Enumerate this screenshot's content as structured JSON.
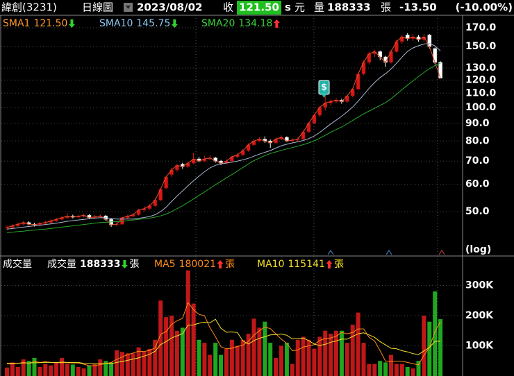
{
  "header": {
    "name": "緯創(3231)",
    "period": "日線圖",
    "date": "2023/08/02",
    "close_label": "收",
    "close": "121.50",
    "mark": "s",
    "currency": "元",
    "volume_label": "量",
    "volume": "188333",
    "volume_unit": "張",
    "change": "-13.50",
    "change_pct": "(-10.00%)"
  },
  "chart_data": [
    {
      "type": "candlestick",
      "scale": "log",
      "axis_label": "(log)",
      "grid": true,
      "annotation": "$",
      "ylim": [
        37.4,
        184.7
      ],
      "yticks": [
        {
          "value": 50,
          "label": "50.0"
        },
        {
          "value": 60,
          "label": "60.0"
        },
        {
          "value": 70,
          "label": "70.0"
        },
        {
          "value": 80,
          "label": "80.0"
        },
        {
          "value": 90,
          "label": "90.0"
        },
        {
          "value": 100,
          "label": "100.0"
        },
        {
          "value": 110,
          "label": "110.0"
        },
        {
          "value": 120,
          "label": "120.0"
        },
        {
          "value": 130,
          "label": "130.0"
        },
        {
          "value": 150,
          "label": "150.0"
        },
        {
          "value": 170,
          "label": "170.0"
        }
      ],
      "up_color": "#d81818",
      "down_color": "#ffffff",
      "open": [
        44.8,
        45,
        45.5,
        46,
        46.5,
        46,
        45.8,
        46.2,
        46.5,
        47,
        47.5,
        48,
        48.5,
        48.2,
        48.5,
        48.8,
        48,
        48.3,
        48.6,
        47.5,
        45.8,
        46,
        48,
        48.5,
        49,
        50.5,
        51,
        52,
        54,
        58.5,
        64,
        66,
        68.5,
        67.5,
        69,
        71,
        70,
        71,
        71.5,
        70,
        69,
        70,
        72,
        73,
        75,
        78,
        80,
        81,
        80,
        79,
        81,
        82,
        80,
        80.5,
        81,
        85,
        90,
        95,
        100,
        103,
        104,
        105,
        104,
        108,
        113,
        125,
        135,
        143,
        145,
        140,
        135,
        145,
        155,
        162,
        158,
        160,
        157,
        162,
        148,
        135
      ],
      "high": [
        45.6,
        46,
        46.5,
        47,
        46.9,
        46.4,
        46.8,
        47.1,
        47.6,
        48,
        48.6,
        49.6,
        49,
        49,
        49.3,
        49.2,
        48.9,
        49.1,
        48.9,
        47.8,
        46.7,
        48.4,
        49,
        49.6,
        51,
        51.8,
        52.6,
        54.6,
        58.5,
        63.5,
        67,
        68.8,
        69.2,
        69.8,
        74,
        72,
        72.5,
        72.8,
        72,
        70.5,
        70.8,
        72.6,
        73.8,
        75.8,
        78.8,
        81,
        82,
        82.5,
        80.8,
        81.8,
        83,
        82.5,
        81.5,
        82,
        85.8,
        90.8,
        96,
        101,
        108,
        105.5,
        106.5,
        106,
        109,
        114,
        126,
        137,
        145,
        147,
        146,
        141,
        147,
        157,
        162,
        164,
        163,
        162,
        163,
        163,
        149,
        136
      ],
      "low": [
        44.3,
        44.7,
        45.2,
        45.6,
        45.6,
        45.3,
        45.4,
        45.8,
        46.2,
        46.7,
        47.2,
        47.7,
        47.8,
        47.9,
        48.1,
        47.6,
        47.7,
        47.9,
        47.1,
        45.2,
        45.3,
        45.8,
        47.6,
        48.2,
        48.7,
        50,
        50.6,
        51.6,
        53.6,
        58,
        63,
        65.2,
        66.5,
        66.8,
        68.5,
        69.4,
        69.5,
        70.5,
        69.3,
        68.2,
        68.5,
        69.5,
        71.5,
        72.5,
        74.5,
        77.5,
        79.5,
        79,
        76.5,
        78.5,
        80.5,
        79.5,
        79,
        79.8,
        80.5,
        84.5,
        89.5,
        94,
        98,
        101,
        103,
        102.5,
        103,
        107,
        112,
        124,
        133,
        140,
        137,
        131,
        134,
        144,
        153,
        156,
        156,
        155,
        155,
        148,
        133.5,
        121.5
      ],
      "close": [
        45,
        45.5,
        46,
        46.5,
        46,
        45.8,
        46.2,
        46.5,
        47,
        47.5,
        48,
        48.5,
        48.2,
        48.5,
        48.8,
        48,
        48.3,
        48.6,
        47.5,
        45.8,
        46,
        48,
        48.5,
        49,
        50.5,
        51,
        52,
        54,
        58,
        63,
        66,
        68,
        67.5,
        69,
        71,
        70,
        71,
        71.5,
        70,
        69,
        70,
        72,
        73,
        75,
        78,
        80,
        81,
        80,
        79,
        81,
        82,
        80,
        80.5,
        81,
        85,
        90,
        95,
        100,
        103,
        104,
        105,
        104,
        108,
        113,
        125,
        135,
        143,
        145,
        140,
        135,
        145,
        155,
        160,
        158,
        160,
        157,
        160,
        150,
        135,
        121.5
      ],
      "series": [
        {
          "name": "SMA1",
          "value": 121.5,
          "value_label": "121.50",
          "trend": "down",
          "color": "#ff9a2e",
          "line_color": "#e8502a",
          "values": [
            45,
            45.5,
            46,
            46.5,
            46,
            45.8,
            46.2,
            46.5,
            47,
            47.5,
            48,
            48.5,
            48.2,
            48.5,
            48.8,
            48,
            48.3,
            48.6,
            47.5,
            45.8,
            46,
            48,
            48.5,
            49,
            50.5,
            51,
            52,
            54,
            58,
            63,
            66,
            68,
            67.5,
            69,
            71,
            70,
            71,
            71.5,
            70,
            69,
            70,
            72,
            73,
            75,
            78,
            80,
            81,
            80,
            79,
            81,
            82,
            80,
            80.5,
            81,
            85,
            90,
            95,
            100,
            103,
            104,
            105,
            104,
            108,
            113,
            125,
            135,
            143,
            145,
            140,
            135,
            145,
            155,
            160,
            158,
            160,
            157,
            160,
            150,
            135,
            121.5
          ]
        },
        {
          "name": "SMA10",
          "value": 145.75,
          "value_label": "145.75",
          "trend": "down",
          "color": "#8cc8f0",
          "line_color": "#a8b8d0",
          "values": [
            44.5,
            44.7,
            44.9,
            45.1,
            45.3,
            45.5,
            45.7,
            45.9,
            46.1,
            46.3,
            46.6,
            46.9,
            47.1,
            47.3,
            47.5,
            47.7,
            47.9,
            48.0,
            48.0,
            47.8,
            47.6,
            47.6,
            47.6,
            47.6,
            47.8,
            48.1,
            48.4,
            49.0,
            50.0,
            51.5,
            53.5,
            55.5,
            57.4,
            59.4,
            61.4,
            63.3,
            65.2,
            66.9,
            68.1,
            68.7,
            69.1,
            69.5,
            70.0,
            70.6,
            71.3,
            72.3,
            73.3,
            74.2,
            75.1,
            76.3,
            77.5,
            78.3,
            79.0,
            79.6,
            80.3,
            81.3,
            82.7,
            84.7,
            87.1,
            89.6,
            91.9,
            94.3,
            97.1,
            100.3,
            104.3,
            108.8,
            113.6,
            118.1,
            122.0,
            125.2,
            129.2,
            134.2,
            139.9,
            145.2,
            148.6,
            150.8,
            152.5,
            153.2,
            150.6,
            145.75
          ]
        },
        {
          "name": "SMA20",
          "value": 134.18,
          "value_label": "134.18",
          "trend": "up",
          "color": "#3ad43a",
          "line_color": "#2aa82a",
          "values": [
            43.5,
            43.6,
            43.8,
            43.9,
            44.1,
            44.2,
            44.4,
            44.5,
            44.7,
            44.9,
            45.1,
            45.3,
            45.5,
            45.7,
            45.9,
            46.1,
            46.3,
            46.5,
            46.6,
            46.7,
            46.8,
            46.9,
            47.1,
            47.3,
            47.5,
            47.7,
            47.9,
            48.2,
            48.6,
            49.2,
            50.0,
            51.0,
            52.0,
            53.2,
            54.4,
            55.7,
            57.0,
            58.4,
            59.8,
            61.2,
            62.6,
            64.0,
            65.5,
            67.1,
            68.7,
            70.2,
            71.4,
            72.6,
            73.6,
            74.4,
            75.2,
            75.9,
            76.6,
            77.3,
            78.1,
            79.0,
            80.1,
            81.5,
            83.1,
            84.8,
            86.3,
            87.9,
            89.7,
            91.7,
            93.8,
            95.8,
            97.7,
            99.5,
            101.4,
            103.3,
            106.0,
            109.2,
            112.6,
            116.0,
            119.4,
            122.8,
            126.2,
            129.5,
            132.2,
            134.18
          ]
        }
      ]
    },
    {
      "type": "bar",
      "title": "成交量",
      "unit": "張",
      "grid": true,
      "ylim": [
        0,
        393000
      ],
      "yticks": [
        {
          "value": 100000,
          "label": "100K"
        },
        {
          "value": 200000,
          "label": "200K"
        },
        {
          "value": 300000,
          "label": "300K"
        }
      ],
      "up_color": "#c01818",
      "down_color": "#1fa81f",
      "name": "成交量",
      "value": 188333,
      "value_label": "188333",
      "trend": "down",
      "color": "#ffffff",
      "values": [
        28000,
        45000,
        30000,
        55000,
        50000,
        60000,
        30000,
        40000,
        35000,
        45000,
        60000,
        40000,
        38000,
        30000,
        25000,
        35000,
        40000,
        55000,
        50000,
        45000,
        85000,
        80000,
        75000,
        75000,
        95000,
        80000,
        90000,
        120000,
        250000,
        195000,
        200000,
        150000,
        160000,
        350000,
        240000,
        120000,
        110000,
        70000,
        110000,
        70000,
        90000,
        120000,
        100000,
        120000,
        140000,
        190000,
        160000,
        180000,
        110000,
        60000,
        100000,
        110000,
        40000,
        120000,
        130000,
        120000,
        90000,
        130000,
        150000,
        140000,
        150000,
        150000,
        110000,
        170000,
        210000,
        110000,
        40000,
        40000,
        50000,
        45000,
        70000,
        40000,
        40000,
        30000,
        25000,
        50000,
        200000,
        180000,
        280000,
        188333
      ],
      "series": [
        {
          "name": "MA5",
          "value": 180021,
          "value_label": "180021",
          "trend": "up",
          "color": "#ff8c1a",
          "values": [
            40000,
            40000,
            42000,
            45000,
            42000,
            48000,
            45000,
            47000,
            45000,
            44000,
            44000,
            44000,
            43000,
            43000,
            39000,
            34000,
            34000,
            38000,
            41000,
            45000,
            55000,
            63000,
            71000,
            76000,
            82000,
            81000,
            85000,
            93000,
            138000,
            147000,
            171000,
            183000,
            191000,
            243000,
            220000,
            204000,
            200000,
            160000,
            130000,
            97000,
            90000,
            92000,
            98000,
            102000,
            115000,
            135000,
            150000,
            162000,
            157000,
            140000,
            122000,
            108000,
            84000,
            86000,
            96000,
            100000,
            104000,
            118000,
            124000,
            126000,
            132000,
            144000,
            140000,
            144000,
            156000,
            156000,
            128000,
            116000,
            84000,
            49000,
            49000,
            49000,
            49000,
            45000,
            41000,
            37000,
            69000,
            95000,
            147000,
            180021
          ]
        },
        {
          "name": "MA10",
          "value": 115141,
          "value_label": "115141",
          "trend": "up",
          "color": "#f5e12a",
          "values": [
            42000,
            42000,
            42000,
            43000,
            43000,
            44000,
            44000,
            45000,
            45000,
            45000,
            46000,
            45000,
            45000,
            45000,
            42000,
            41000,
            40000,
            41000,
            41000,
            41000,
            45000,
            48000,
            52000,
            56000,
            60000,
            66000,
            72000,
            82000,
            104000,
            114000,
            126000,
            133000,
            140000,
            168000,
            169000,
            175000,
            178000,
            176000,
            188000,
            158000,
            145000,
            146000,
            144000,
            116000,
            106000,
            117000,
            125000,
            130000,
            136000,
            137000,
            139000,
            135000,
            123000,
            124000,
            126000,
            117000,
            106000,
            101000,
            105000,
            112000,
            116000,
            122000,
            122000,
            131000,
            140000,
            143000,
            136000,
            128000,
            114000,
            103000,
            92000,
            90000,
            84000,
            80000,
            74000,
            71000,
            83000,
            95000,
            115000,
            115141
          ]
        }
      ]
    }
  ]
}
